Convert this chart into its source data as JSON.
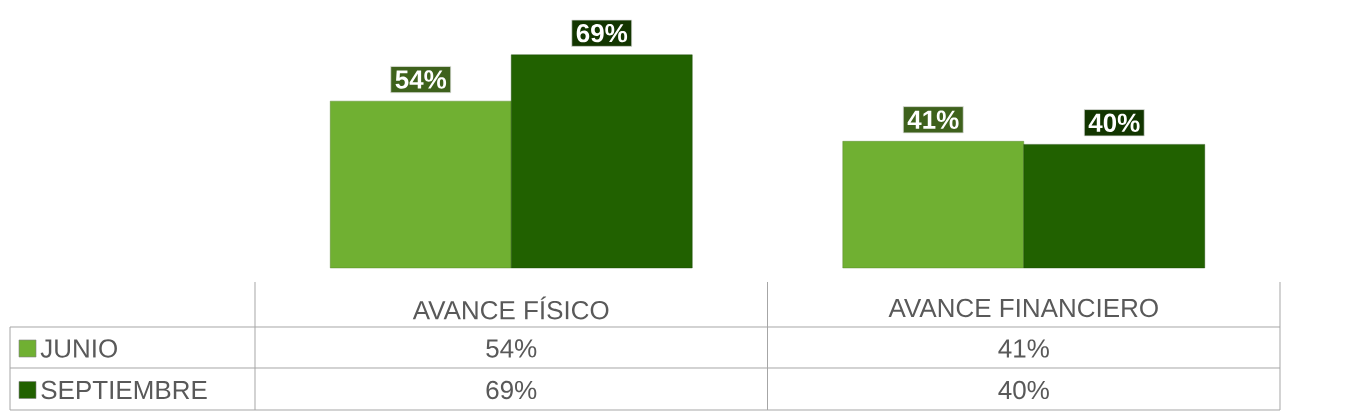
{
  "chart_data": {
    "type": "bar",
    "categories": [
      "AVANCE FÍSICO",
      "AVANCE FINANCIERO"
    ],
    "series": [
      {
        "name": "JUNIO",
        "color": "#70b032",
        "values": [
          54,
          41
        ],
        "value_labels": [
          "54%",
          "41%"
        ]
      },
      {
        "name": "SEPTIEMBRE",
        "color": "#216100",
        "values": [
          69,
          40
        ],
        "value_labels": [
          "69%",
          "40%"
        ]
      }
    ],
    "legend": "bottom"
  }
}
